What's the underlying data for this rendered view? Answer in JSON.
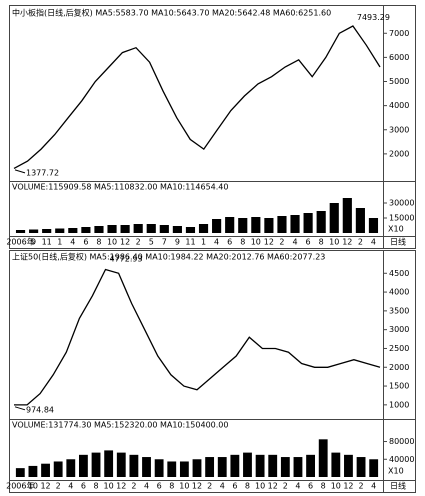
{
  "chart_data": [
    {
      "type": "line",
      "title": "中小板指(日线,后复权) MA5:5583.70 MA10:5643.70 MA20:5642.48 MA60:6251.60",
      "high": 7493.29,
      "low": 1377.72,
      "color": "#000000",
      "values": [
        1400,
        1700,
        2200,
        2800,
        3500,
        4200,
        5000,
        5600,
        6200,
        6400,
        5800,
        4600,
        3500,
        2600,
        2200,
        3000,
        3800,
        4400,
        4900,
        5200,
        5600,
        5900,
        5200,
        6000,
        7000,
        7300,
        6500,
        5600
      ],
      "ylim": [
        1000,
        7550
      ],
      "yticks": [
        2000,
        3000,
        4000,
        5000,
        6000,
        7000
      ]
    },
    {
      "type": "bar",
      "title": "VOLUME:115909.58 MA5:110832.00 MA10:114654.40",
      "scale_note": "X10",
      "period": "日线",
      "color": "#000000",
      "categories": [
        "2006年",
        "9",
        "11",
        "1",
        "4",
        "6",
        "8",
        "10",
        "12",
        "2",
        "5",
        "7",
        "9",
        "11",
        "1",
        "4",
        "6",
        "8",
        "10",
        "12",
        "2",
        "4",
        "6",
        "8",
        "10",
        "12",
        "2",
        "4"
      ],
      "values": [
        3000,
        3500,
        4000,
        4500,
        5000,
        6000,
        7000,
        8000,
        8000,
        9000,
        9000,
        8000,
        7000,
        6000,
        9000,
        14000,
        16000,
        15000,
        16000,
        15000,
        17000,
        18000,
        20000,
        22000,
        30000,
        35000,
        25000,
        15000
      ],
      "ylim": [
        0,
        40000
      ],
      "yticks": [
        15000,
        30000
      ]
    },
    {
      "type": "line",
      "title": "上证50(日线,后复权) MA5:1986.40 MA10:1984.22 MA20:2012.76 MA60:2077.23",
      "high": 4772.93,
      "low": 974.84,
      "color": "#000000",
      "values": [
        1000,
        1000,
        1300,
        1800,
        2400,
        3300,
        3900,
        4600,
        4500,
        3700,
        3000,
        2300,
        1800,
        1500,
        1400,
        1700,
        2000,
        2300,
        2800,
        2500,
        2500,
        2400,
        2100,
        2000,
        2000,
        2100,
        2200,
        2100,
        2000
      ],
      "ylim": [
        730,
        4800
      ],
      "yticks": [
        1000,
        1500,
        2000,
        2500,
        3000,
        3500,
        4000,
        4500
      ]
    },
    {
      "type": "bar",
      "title": "VOLUME:131774.30 MA5:152320.00 MA10:150400.00",
      "scale_note": "X10",
      "period": "日线",
      "color": "#000000",
      "categories": [
        "2006年",
        "10",
        "12",
        "2",
        "4",
        "6",
        "8",
        "10",
        "12",
        "2",
        "4",
        "6",
        "8",
        "10",
        "12",
        "2",
        "4",
        "6",
        "8",
        "10",
        "12",
        "2",
        "4",
        "6",
        "8",
        "10",
        "12",
        "2",
        "4"
      ],
      "values": [
        20000,
        25000,
        30000,
        35000,
        40000,
        50000,
        55000,
        60000,
        55000,
        50000,
        45000,
        40000,
        35000,
        35000,
        40000,
        45000,
        45000,
        50000,
        55000,
        50000,
        50000,
        45000,
        45000,
        50000,
        85000,
        55000,
        50000,
        45000,
        40000
      ],
      "ylim": [
        0,
        106000
      ],
      "yticks": [
        40000,
        80000
      ]
    }
  ]
}
